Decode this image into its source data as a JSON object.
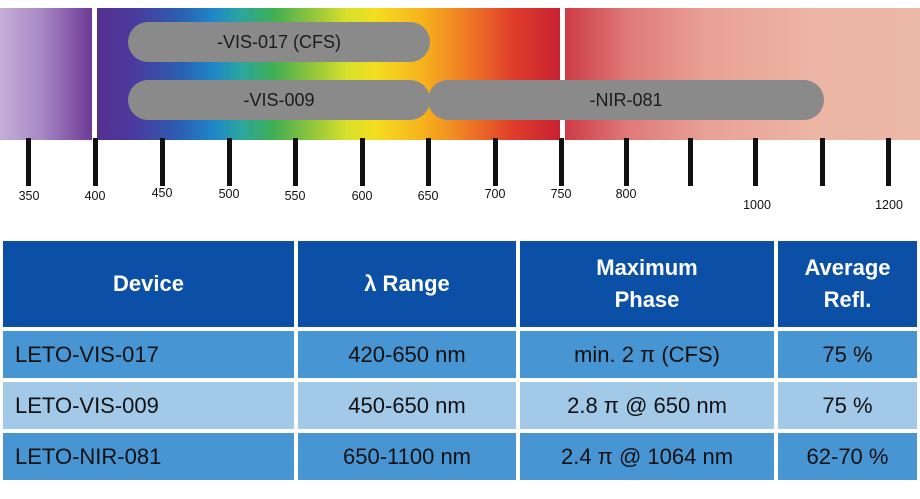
{
  "spectrum": {
    "bars": [
      {
        "label": "-VIS-017 (CFS)"
      },
      {
        "label": "-VIS-009"
      },
      {
        "label": "-NIR-081"
      }
    ],
    "ticks": [
      "350",
      "400",
      "450",
      "500",
      "550",
      "600",
      "650",
      "700",
      "750",
      "800",
      "1000",
      "1200"
    ]
  },
  "table": {
    "headers": [
      "Device",
      "λ Range",
      "Maximum Phase",
      "Average Refl."
    ],
    "rows": [
      {
        "device": "LETO-VIS-017",
        "range": "420-650 nm",
        "phase": "min. 2 π (CFS)",
        "refl": "75 %"
      },
      {
        "device": "LETO-VIS-009",
        "range": "450-650 nm",
        "phase": "2.8 π @ 650 nm",
        "refl": "75 %"
      },
      {
        "device": "LETO-NIR-081",
        "range": "650-1100 nm",
        "phase": "2.4 π @ 1064 nm",
        "refl": "62-70 %"
      }
    ]
  },
  "colors": {
    "header_blue": "#0b50a6",
    "row_blue_dark": "#4895d3",
    "row_blue_light": "#a3c9e9",
    "bar_gray": "#8a8a8a"
  }
}
